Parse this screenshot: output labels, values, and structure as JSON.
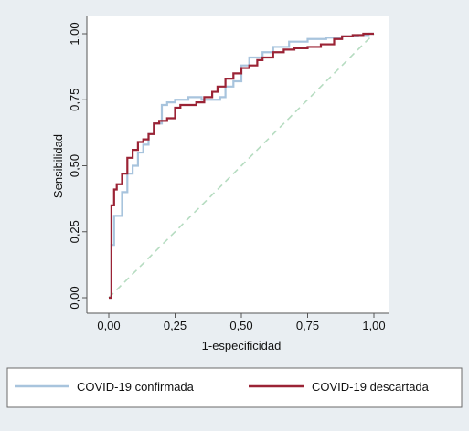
{
  "chart_data": {
    "type": "line",
    "xlabel": "1-especificidad",
    "ylabel": "Sensibilidad",
    "xlim": [
      0,
      1
    ],
    "ylim": [
      0,
      1
    ],
    "x_ticks": [
      0,
      0.25,
      0.5,
      0.75,
      1
    ],
    "y_ticks": [
      0,
      0.25,
      0.5,
      0.75,
      1
    ],
    "x_tick_labels": [
      "0,00",
      "0,25",
      "0,50",
      "0,75",
      "1,00"
    ],
    "y_tick_labels": [
      "0,00",
      "0,25",
      "0,50",
      "0,75",
      "1,00"
    ],
    "grid": false,
    "legend_position": "bottom",
    "series": [
      {
        "name": "COVID-19 confirmada",
        "color": "#a8c4dd",
        "step": true,
        "x": [
          0.0,
          0.01,
          0.02,
          0.05,
          0.07,
          0.09,
          0.11,
          0.13,
          0.15,
          0.17,
          0.2,
          0.22,
          0.25,
          0.3,
          0.35,
          0.38,
          0.42,
          0.44,
          0.47,
          0.5,
          0.53,
          0.58,
          0.62,
          0.68,
          0.75,
          0.82,
          0.88,
          0.94,
          0.98,
          1.0
        ],
        "y": [
          0.0,
          0.2,
          0.31,
          0.4,
          0.47,
          0.5,
          0.55,
          0.58,
          0.62,
          0.66,
          0.73,
          0.74,
          0.75,
          0.76,
          0.75,
          0.75,
          0.76,
          0.8,
          0.82,
          0.88,
          0.91,
          0.93,
          0.95,
          0.97,
          0.98,
          0.985,
          0.99,
          0.995,
          1.0,
          1.0
        ]
      },
      {
        "name": "COVID-19 descartada",
        "color": "#9b2335",
        "step": true,
        "x": [
          0.0,
          0.01,
          0.02,
          0.03,
          0.05,
          0.07,
          0.09,
          0.11,
          0.13,
          0.15,
          0.17,
          0.19,
          0.22,
          0.25,
          0.27,
          0.3,
          0.33,
          0.36,
          0.39,
          0.41,
          0.44,
          0.47,
          0.5,
          0.53,
          0.56,
          0.58,
          0.62,
          0.66,
          0.7,
          0.75,
          0.8,
          0.85,
          0.88,
          0.92,
          0.96,
          1.0
        ],
        "y": [
          0.0,
          0.35,
          0.41,
          0.43,
          0.47,
          0.53,
          0.56,
          0.59,
          0.6,
          0.62,
          0.66,
          0.67,
          0.68,
          0.72,
          0.73,
          0.73,
          0.74,
          0.76,
          0.78,
          0.8,
          0.83,
          0.85,
          0.87,
          0.88,
          0.9,
          0.91,
          0.93,
          0.94,
          0.945,
          0.95,
          0.96,
          0.98,
          0.99,
          0.995,
          1.0,
          1.0
        ]
      },
      {
        "color": "#b6dcc1",
        "dashed": true,
        "x": [
          0,
          1
        ],
        "y": [
          0,
          1
        ]
      }
    ]
  }
}
